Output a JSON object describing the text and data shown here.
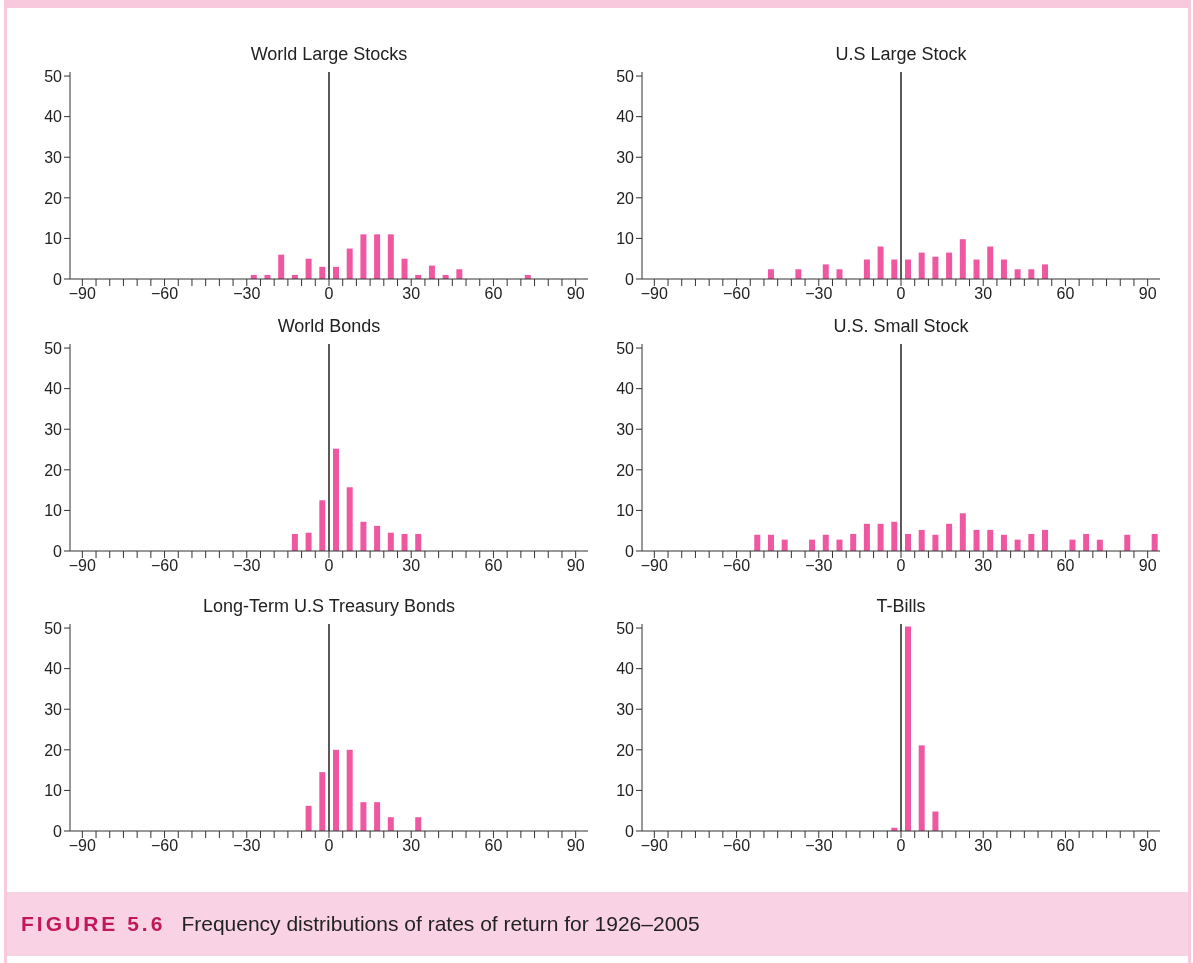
{
  "chart_data": [
    {
      "type": "bar",
      "title": "World Large Stocks",
      "annotations": [
        "FIGURE 5.6",
        "Frequency distributions of rates of return for 1926–2005"
      ],
      "color": "#ef58a0",
      "x": [
        -27.5,
        -22.5,
        -17.5,
        -12.5,
        -7.5,
        -2.5,
        2.5,
        7.5,
        12.5,
        17.5,
        22.5,
        27.5,
        32.5,
        37.5,
        42.5,
        47.5,
        72.5
      ],
      "values": [
        1,
        1,
        6,
        1,
        5,
        3,
        3,
        7.5,
        11,
        11,
        11,
        5,
        1,
        3.3,
        1,
        2.4,
        1
      ],
      "xlim": [
        -94.5,
        94.5
      ],
      "ylim": [
        0,
        51
      ],
      "yticks": [
        0,
        10,
        20,
        30,
        40,
        50
      ],
      "xticks": [
        {
          "value": -90,
          "label": "−90"
        },
        {
          "value": -85,
          "label": null
        },
        {
          "value": -80,
          "label": null
        },
        {
          "value": -75,
          "label": null
        },
        {
          "value": -70,
          "label": null
        },
        {
          "value": -65,
          "label": null
        },
        {
          "value": -60,
          "label": "−60"
        },
        {
          "value": -55,
          "label": null
        },
        {
          "value": -50,
          "label": null
        },
        {
          "value": -45,
          "label": null
        },
        {
          "value": -40,
          "label": null
        },
        {
          "value": -35,
          "label": null
        },
        {
          "value": -30,
          "label": "−30"
        },
        {
          "value": -25,
          "label": null
        },
        {
          "value": -20,
          "label": null
        },
        {
          "value": -15,
          "label": null
        },
        {
          "value": -10,
          "label": null
        },
        {
          "value": -5,
          "label": null
        },
        0,
        {
          "value": 5,
          "label": null
        },
        {
          "value": 10,
          "label": null
        },
        {
          "value": 15,
          "label": null
        },
        {
          "value": 20,
          "label": null
        },
        {
          "value": 25,
          "label": null
        },
        30,
        {
          "value": 35,
          "label": null
        },
        {
          "value": 40,
          "label": null
        },
        {
          "value": 45,
          "label": null
        },
        {
          "value": 50,
          "label": null
        },
        {
          "value": 55,
          "label": null
        },
        60,
        {
          "value": 65,
          "label": null
        },
        {
          "value": 70,
          "label": null
        },
        {
          "value": 75,
          "label": null
        },
        {
          "value": 80,
          "label": null
        },
        {
          "value": 85,
          "label": null
        },
        90
      ],
      "ref_lines": [
        {
          "axis": "x",
          "value": 0,
          "color": "#000000"
        }
      ]
    },
    {
      "type": "bar",
      "title": "U.S Large Stock",
      "color": "#ef58a0",
      "x": [
        -47.5,
        -37.5,
        -27.5,
        -22.5,
        -12.5,
        -7.5,
        -2.5,
        2.5,
        7.5,
        12.5,
        17.5,
        22.5,
        27.5,
        32.5,
        37.5,
        42.5,
        47.5,
        52.5
      ],
      "values": [
        2.4,
        2.4,
        3.6,
        2.4,
        4.8,
        8,
        4.8,
        4.8,
        6.5,
        5.5,
        6.5,
        9.8,
        4.8,
        8,
        4.8,
        2.4,
        2.4,
        3.6
      ],
      "xlim": [
        -94.5,
        94.5
      ],
      "ylim": [
        0,
        51
      ],
      "yticks": [
        0,
        10,
        20,
        30,
        40,
        50
      ],
      "xticks": [
        {
          "value": -90,
          "label": "−90"
        },
        {
          "value": -85,
          "label": null
        },
        {
          "value": -80,
          "label": null
        },
        {
          "value": -75,
          "label": null
        },
        {
          "value": -70,
          "label": null
        },
        {
          "value": -65,
          "label": null
        },
        {
          "value": -60,
          "label": "−60"
        },
        {
          "value": -55,
          "label": null
        },
        {
          "value": -50,
          "label": null
        },
        {
          "value": -45,
          "label": null
        },
        {
          "value": -40,
          "label": null
        },
        {
          "value": -35,
          "label": null
        },
        {
          "value": -30,
          "label": "−30"
        },
        {
          "value": -25,
          "label": null
        },
        {
          "value": -20,
          "label": null
        },
        {
          "value": -15,
          "label": null
        },
        {
          "value": -10,
          "label": null
        },
        {
          "value": -5,
          "label": null
        },
        0,
        {
          "value": 5,
          "label": null
        },
        {
          "value": 10,
          "label": null
        },
        {
          "value": 15,
          "label": null
        },
        {
          "value": 20,
          "label": null
        },
        {
          "value": 25,
          "label": null
        },
        30,
        {
          "value": 35,
          "label": null
        },
        {
          "value": 40,
          "label": null
        },
        {
          "value": 45,
          "label": null
        },
        {
          "value": 50,
          "label": null
        },
        {
          "value": 55,
          "label": null
        },
        60,
        {
          "value": 65,
          "label": null
        },
        {
          "value": 70,
          "label": null
        },
        {
          "value": 75,
          "label": null
        },
        {
          "value": 80,
          "label": null
        },
        {
          "value": 85,
          "label": null
        },
        90
      ],
      "ref_lines": [
        {
          "axis": "x",
          "value": 0,
          "color": "#000000"
        }
      ]
    },
    {
      "type": "bar",
      "title": "World Bonds",
      "color": "#ef58a0",
      "x": [
        -12.5,
        -7.5,
        -2.5,
        2.5,
        7.5,
        12.5,
        17.5,
        22.5,
        27.5,
        32.5
      ],
      "values": [
        4.2,
        4.5,
        12.5,
        25.2,
        15.7,
        7.2,
        6.2,
        4.5,
        4.2,
        4.2
      ],
      "xlim": [
        -94.5,
        94.5
      ],
      "ylim": [
        0,
        51
      ],
      "yticks": [
        0,
        10,
        20,
        30,
        40,
        50
      ],
      "xticks": [
        {
          "value": -90,
          "label": "−90"
        },
        {
          "value": -85,
          "label": null
        },
        {
          "value": -80,
          "label": null
        },
        {
          "value": -75,
          "label": null
        },
        {
          "value": -70,
          "label": null
        },
        {
          "value": -65,
          "label": null
        },
        {
          "value": -60,
          "label": "−60"
        },
        {
          "value": -55,
          "label": null
        },
        {
          "value": -50,
          "label": null
        },
        {
          "value": -45,
          "label": null
        },
        {
          "value": -40,
          "label": null
        },
        {
          "value": -35,
          "label": null
        },
        {
          "value": -30,
          "label": "−30"
        },
        {
          "value": -25,
          "label": null
        },
        {
          "value": -20,
          "label": null
        },
        {
          "value": -15,
          "label": null
        },
        {
          "value": -10,
          "label": null
        },
        {
          "value": -5,
          "label": null
        },
        0,
        {
          "value": 5,
          "label": null
        },
        {
          "value": 10,
          "label": null
        },
        {
          "value": 15,
          "label": null
        },
        {
          "value": 20,
          "label": null
        },
        {
          "value": 25,
          "label": null
        },
        30,
        {
          "value": 35,
          "label": null
        },
        {
          "value": 40,
          "label": null
        },
        {
          "value": 45,
          "label": null
        },
        {
          "value": 50,
          "label": null
        },
        {
          "value": 55,
          "label": null
        },
        60,
        {
          "value": 65,
          "label": null
        },
        {
          "value": 70,
          "label": null
        },
        {
          "value": 75,
          "label": null
        },
        {
          "value": 80,
          "label": null
        },
        {
          "value": 85,
          "label": null
        },
        90
      ],
      "ref_lines": [
        {
          "axis": "x",
          "value": 0,
          "color": "#000000"
        }
      ]
    },
    {
      "type": "bar",
      "title": "U.S. Small Stock",
      "color": "#ef58a0",
      "x": [
        -52.5,
        -47.5,
        -42.5,
        -32.5,
        -27.5,
        -22.5,
        -17.5,
        -12.5,
        -7.5,
        -2.5,
        2.5,
        7.5,
        12.5,
        17.5,
        22.5,
        27.5,
        32.5,
        37.5,
        42.5,
        47.5,
        52.5,
        62.5,
        67.5,
        72.5,
        82.5,
        92.5
      ],
      "values": [
        4,
        4,
        2.8,
        2.8,
        4,
        2.8,
        4.2,
        6.7,
        6.7,
        7.2,
        4.2,
        5.2,
        4,
        6.7,
        9.3,
        5.2,
        5.2,
        4,
        2.8,
        4.2,
        5.2,
        2.8,
        4.2,
        2.8,
        4,
        4.2
      ],
      "xlim": [
        -94.5,
        94.5
      ],
      "ylim": [
        0,
        51
      ],
      "yticks": [
        0,
        10,
        20,
        30,
        40,
        50
      ],
      "xticks": [
        {
          "value": -90,
          "label": "−90"
        },
        {
          "value": -85,
          "label": null
        },
        {
          "value": -80,
          "label": null
        },
        {
          "value": -75,
          "label": null
        },
        {
          "value": -70,
          "label": null
        },
        {
          "value": -65,
          "label": null
        },
        {
          "value": -60,
          "label": "−60"
        },
        {
          "value": -55,
          "label": null
        },
        {
          "value": -50,
          "label": null
        },
        {
          "value": -45,
          "label": null
        },
        {
          "value": -40,
          "label": null
        },
        {
          "value": -35,
          "label": null
        },
        {
          "value": -30,
          "label": "−30"
        },
        {
          "value": -25,
          "label": null
        },
        {
          "value": -20,
          "label": null
        },
        {
          "value": -15,
          "label": null
        },
        {
          "value": -10,
          "label": null
        },
        {
          "value": -5,
          "label": null
        },
        0,
        {
          "value": 5,
          "label": null
        },
        {
          "value": 10,
          "label": null
        },
        {
          "value": 15,
          "label": null
        },
        {
          "value": 20,
          "label": null
        },
        {
          "value": 25,
          "label": null
        },
        30,
        {
          "value": 35,
          "label": null
        },
        {
          "value": 40,
          "label": null
        },
        {
          "value": 45,
          "label": null
        },
        {
          "value": 50,
          "label": null
        },
        {
          "value": 55,
          "label": null
        },
        60,
        {
          "value": 65,
          "label": null
        },
        {
          "value": 70,
          "label": null
        },
        {
          "value": 75,
          "label": null
        },
        {
          "value": 80,
          "label": null
        },
        {
          "value": 85,
          "label": null
        },
        90
      ],
      "ref_lines": [
        {
          "axis": "x",
          "value": 0,
          "color": "#000000"
        }
      ]
    },
    {
      "type": "bar",
      "title": "Long-Term U.S Treasury Bonds",
      "color": "#ef58a0",
      "x": [
        -7.5,
        -2.5,
        2.5,
        7.5,
        12.5,
        17.5,
        22.5,
        32.5
      ],
      "values": [
        6.2,
        14.5,
        20,
        20,
        7.1,
        7.1,
        3.4,
        3.4
      ],
      "xlim": [
        -94.5,
        94.5
      ],
      "ylim": [
        0,
        51
      ],
      "yticks": [
        0,
        10,
        20,
        30,
        40,
        50
      ],
      "xticks": [
        {
          "value": -90,
          "label": "−90"
        },
        {
          "value": -85,
          "label": null
        },
        {
          "value": -80,
          "label": null
        },
        {
          "value": -75,
          "label": null
        },
        {
          "value": -70,
          "label": null
        },
        {
          "value": -65,
          "label": null
        },
        {
          "value": -60,
          "label": "−60"
        },
        {
          "value": -55,
          "label": null
        },
        {
          "value": -50,
          "label": null
        },
        {
          "value": -45,
          "label": null
        },
        {
          "value": -40,
          "label": null
        },
        {
          "value": -35,
          "label": null
        },
        {
          "value": -30,
          "label": "−30"
        },
        {
          "value": -25,
          "label": null
        },
        {
          "value": -20,
          "label": null
        },
        {
          "value": -15,
          "label": null
        },
        {
          "value": -10,
          "label": null
        },
        {
          "value": -5,
          "label": null
        },
        0,
        {
          "value": 5,
          "label": null
        },
        {
          "value": 10,
          "label": null
        },
        {
          "value": 15,
          "label": null
        },
        {
          "value": 20,
          "label": null
        },
        {
          "value": 25,
          "label": null
        },
        30,
        {
          "value": 35,
          "label": null
        },
        {
          "value": 40,
          "label": null
        },
        {
          "value": 45,
          "label": null
        },
        {
          "value": 50,
          "label": null
        },
        {
          "value": 55,
          "label": null
        },
        60,
        {
          "value": 65,
          "label": null
        },
        {
          "value": 70,
          "label": null
        },
        {
          "value": 75,
          "label": null
        },
        {
          "value": 80,
          "label": null
        },
        {
          "value": 85,
          "label": null
        },
        90
      ],
      "ref_lines": [
        {
          "axis": "x",
          "value": 0,
          "color": "#000000"
        }
      ]
    },
    {
      "type": "bar",
      "title": "T-Bills",
      "color": "#ef58a0",
      "x": [
        -2.5,
        2.5,
        7.5,
        12.5
      ],
      "values": [
        0.8,
        50.4,
        21.1,
        4.8
      ],
      "xlim": [
        -94.5,
        94.5
      ],
      "ylim": [
        0,
        51
      ],
      "yticks": [
        0,
        10,
        20,
        30,
        40,
        50
      ],
      "xticks": [
        {
          "value": -90,
          "label": "−90"
        },
        {
          "value": -85,
          "label": null
        },
        {
          "value": -80,
          "label": null
        },
        {
          "value": -75,
          "label": null
        },
        {
          "value": -70,
          "label": null
        },
        {
          "value": -65,
          "label": null
        },
        {
          "value": -60,
          "label": "−60"
        },
        {
          "value": -55,
          "label": null
        },
        {
          "value": -50,
          "label": null
        },
        {
          "value": -45,
          "label": null
        },
        {
          "value": -40,
          "label": null
        },
        {
          "value": -35,
          "label": null
        },
        {
          "value": -30,
          "label": "−30"
        },
        {
          "value": -25,
          "label": null
        },
        {
          "value": -20,
          "label": null
        },
        {
          "value": -15,
          "label": null
        },
        {
          "value": -10,
          "label": null
        },
        {
          "value": -5,
          "label": null
        },
        0,
        {
          "value": 5,
          "label": null
        },
        {
          "value": 10,
          "label": null
        },
        {
          "value": 15,
          "label": null
        },
        {
          "value": 20,
          "label": null
        },
        {
          "value": 25,
          "label": null
        },
        30,
        {
          "value": 35,
          "label": null
        },
        {
          "value": 40,
          "label": null
        },
        {
          "value": 45,
          "label": null
        },
        {
          "value": 50,
          "label": null
        },
        {
          "value": 55,
          "label": null
        },
        60,
        {
          "value": 65,
          "label": null
        },
        {
          "value": 70,
          "label": null
        },
        {
          "value": 75,
          "label": null
        },
        {
          "value": 80,
          "label": null
        },
        {
          "value": 85,
          "label": null
        },
        90
      ],
      "ref_lines": [
        {
          "axis": "x",
          "value": 0,
          "color": "#000000"
        }
      ]
    }
  ]
}
